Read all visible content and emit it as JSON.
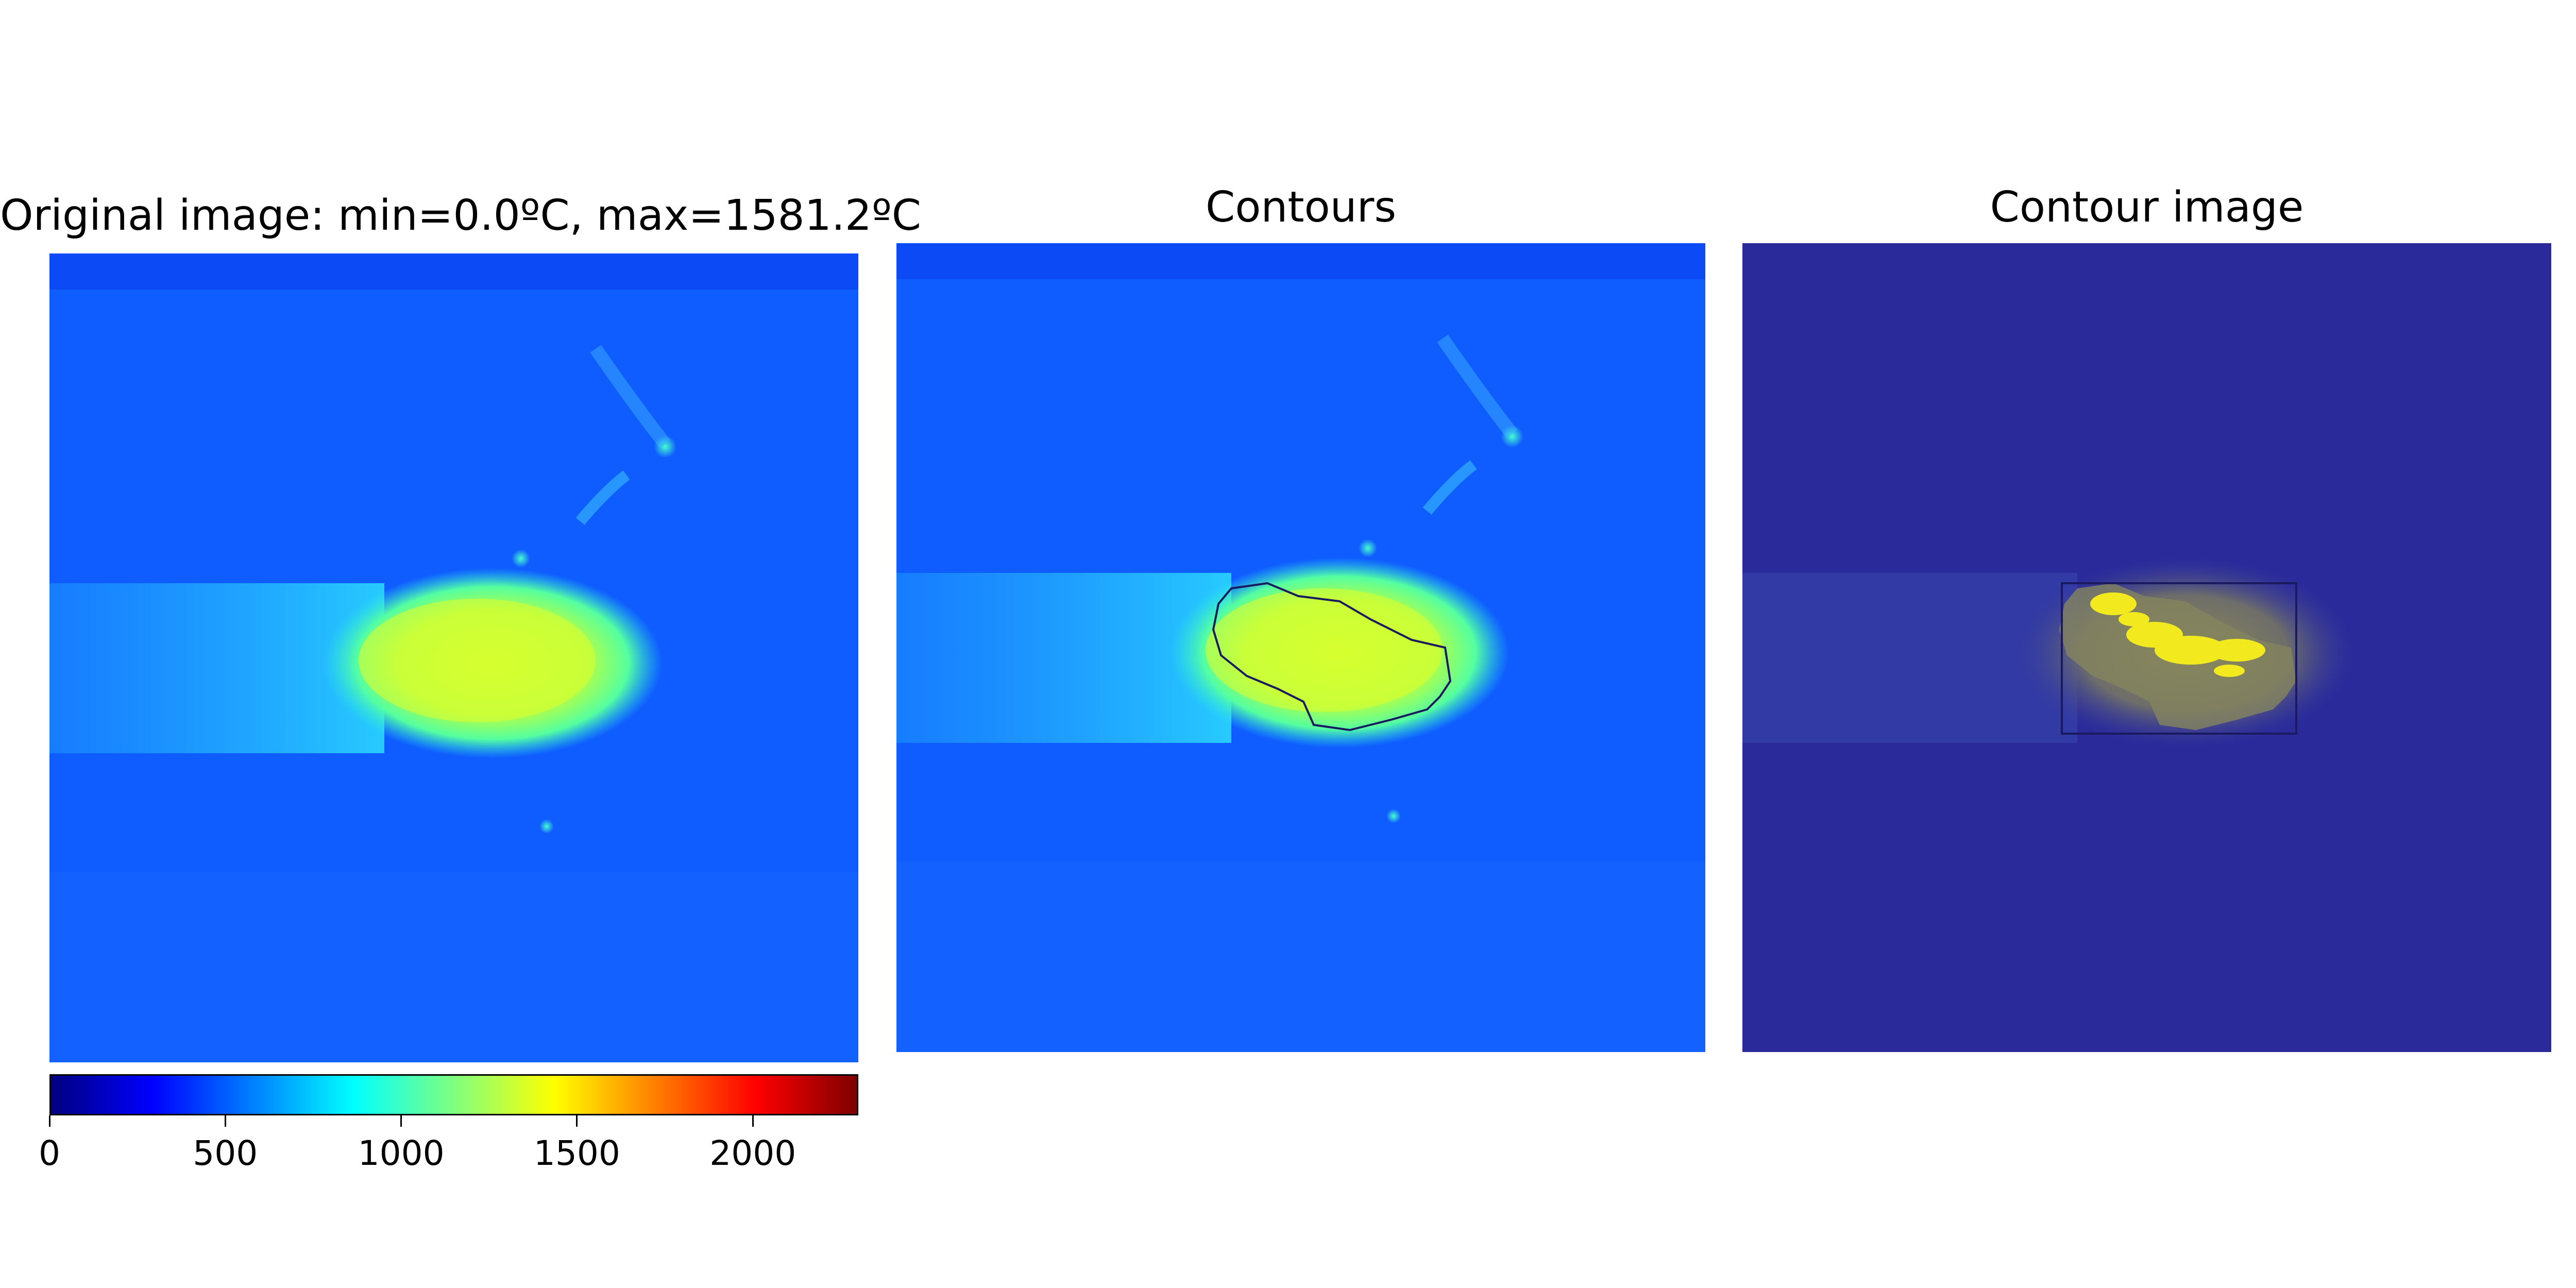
{
  "chart_data": [
    {
      "type": "heatmap",
      "title": "Original image: min=0.0ºC, max=1581.2ºC",
      "colormap": "jet",
      "colorbar": {
        "min": 0,
        "max": 2300,
        "ticks": [
          0,
          500,
          1000,
          1500,
          2000
        ]
      }
    },
    {
      "type": "heatmap",
      "title": "Contours",
      "colormap": "jet",
      "overlay": "contour"
    },
    {
      "type": "heatmap",
      "title": "Contour image",
      "colormap": "jet",
      "overlay": "bounding-box"
    }
  ]
}
